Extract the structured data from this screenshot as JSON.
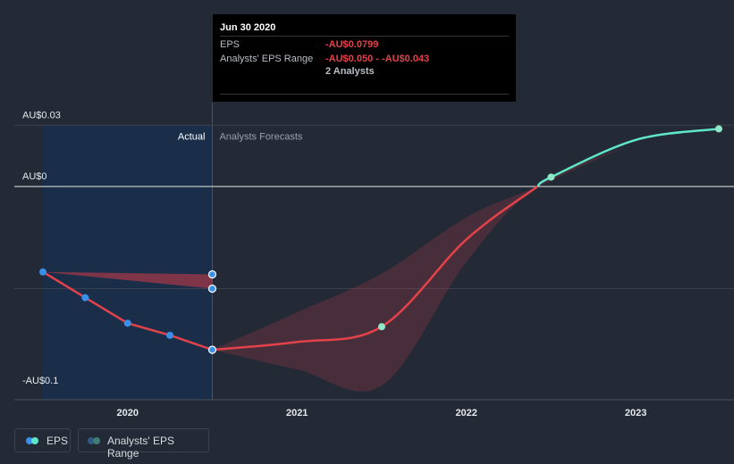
{
  "tooltip": {
    "date": "Jun 30 2020",
    "eps_label": "EPS",
    "eps_value": "-AU$0.0799",
    "range_label": "Analysts' EPS Range",
    "range_value": "-AU$0.050 - -AU$0.043",
    "analysts": "2 Analysts"
  },
  "legend": {
    "eps": "EPS",
    "range": "Analysts' EPS Range"
  },
  "colors": {
    "background": "#232a35",
    "actual_region": "#1a3050",
    "eps_line": "#e3424a",
    "forecast_positive": "#5fe6c8",
    "point_actual": "#3a8fe8",
    "point_forecast": "#8ee8c8",
    "range_fill": "#a03848"
  },
  "chart_data": {
    "type": "line",
    "section_labels": {
      "actual": "Actual",
      "forecast": "Analysts Forecasts"
    },
    "y_tick_labels": [
      "AU$0.03",
      "AU$0",
      "-AU$0.1"
    ],
    "y_ticks": [
      0.03,
      0,
      -0.1
    ],
    "x_tick_labels": [
      "2020",
      "2021",
      "2022",
      "2023"
    ],
    "x_ticks": [
      2020.0,
      2021.0,
      2022.0,
      2023.0
    ],
    "x_range": [
      2019.53,
      2023.49
    ],
    "y_gridline_extra": -0.05,
    "actual_end": 2020.5,
    "series": [
      {
        "name": "EPS",
        "kind": "actual",
        "points": [
          {
            "x": 2019.5,
            "y": -0.0418
          },
          {
            "x": 2019.75,
            "y": -0.0544
          },
          {
            "x": 2020.0,
            "y": -0.0669
          },
          {
            "x": 2020.25,
            "y": -0.0728
          },
          {
            "x": 2020.5,
            "y": -0.0799
          }
        ]
      },
      {
        "name": "EPS",
        "kind": "forecast",
        "points": [
          {
            "x": 2020.5,
            "y": -0.0799
          },
          {
            "x": 2021.0,
            "y": -0.0761
          },
          {
            "x": 2021.5,
            "y": -0.0686
          },
          {
            "x": 2022.0,
            "y": -0.0259
          },
          {
            "x": 2022.42,
            "y": 0.0
          },
          {
            "x": 2022.5,
            "y": 0.0046
          },
          {
            "x": 2023.0,
            "y": 0.0228
          },
          {
            "x": 2023.49,
            "y": 0.0282
          }
        ]
      }
    ],
    "range_band_actual": {
      "upper": [
        {
          "x": 2019.5,
          "y": -0.0418
        },
        {
          "x": 2020.5,
          "y": -0.043
        }
      ],
      "lower": [
        {
          "x": 2019.5,
          "y": -0.0418
        },
        {
          "x": 2020.5,
          "y": -0.05
        }
      ]
    },
    "range_band_forecast": {
      "upper": [
        {
          "x": 2020.5,
          "y": -0.0799
        },
        {
          "x": 2021.0,
          "y": -0.0616
        },
        {
          "x": 2021.5,
          "y": -0.0427
        },
        {
          "x": 2022.0,
          "y": -0.0151
        },
        {
          "x": 2022.42,
          "y": 0.0
        },
        {
          "x": 2023.0,
          "y": 0.0208
        },
        {
          "x": 2023.49,
          "y": 0.0282
        }
      ],
      "lower": [
        {
          "x": 2023.49,
          "y": 0.0282
        },
        {
          "x": 2023.0,
          "y": 0.0208
        },
        {
          "x": 2022.42,
          "y": 0.0
        },
        {
          "x": 2022.0,
          "y": -0.0369
        },
        {
          "x": 2021.5,
          "y": -0.0974
        },
        {
          "x": 2021.0,
          "y": -0.0895
        },
        {
          "x": 2020.5,
          "y": -0.0799
        }
      ]
    },
    "markers": [
      {
        "x": 2019.5,
        "y": -0.0418,
        "style": "actual"
      },
      {
        "x": 2019.75,
        "y": -0.0544,
        "style": "actual"
      },
      {
        "x": 2020.0,
        "y": -0.0669,
        "style": "actual"
      },
      {
        "x": 2020.25,
        "y": -0.0728,
        "style": "actual"
      },
      {
        "x": 2020.5,
        "y": -0.0799,
        "style": "highlight"
      },
      {
        "x": 2020.5,
        "y": -0.043,
        "style": "highlight"
      },
      {
        "x": 2020.5,
        "y": -0.05,
        "style": "highlight"
      },
      {
        "x": 2021.5,
        "y": -0.0686,
        "style": "forecast"
      },
      {
        "x": 2022.5,
        "y": 0.0046,
        "style": "forecast"
      },
      {
        "x": 2023.49,
        "y": 0.0282,
        "style": "forecast"
      }
    ]
  }
}
